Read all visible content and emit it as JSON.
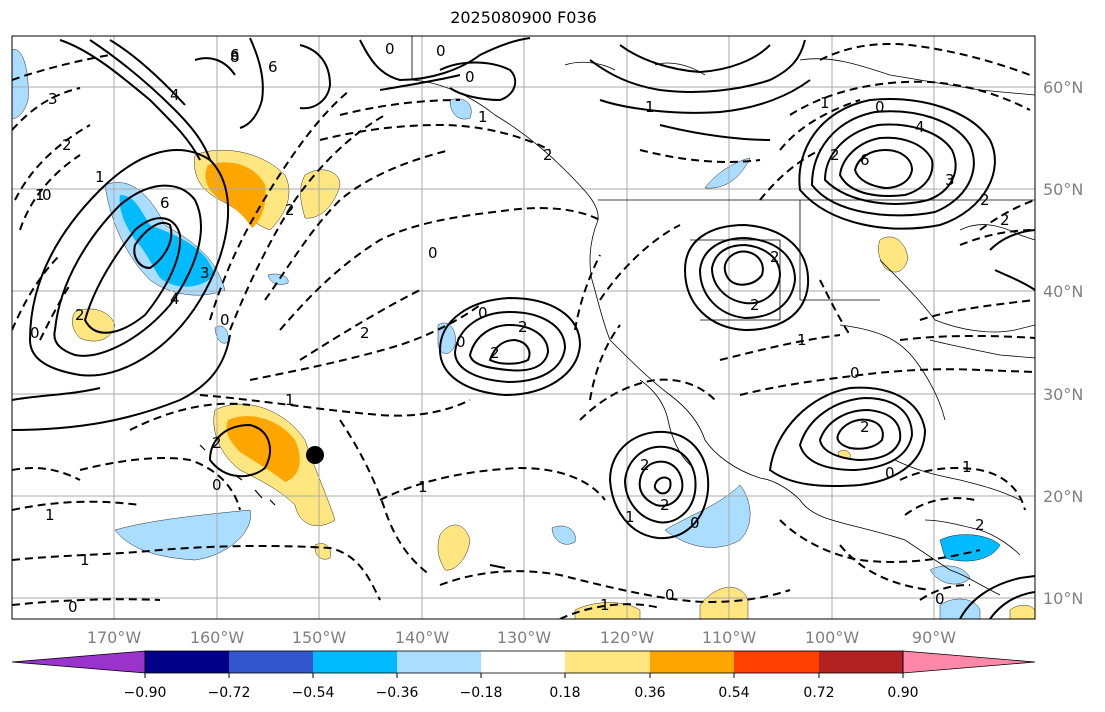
{
  "title": "2025080900 F036",
  "lon_labels": [
    "170°W",
    "160°W",
    "150°W",
    "140°W",
    "130°W",
    "120°W",
    "110°W",
    "100°W",
    "90°W"
  ],
  "lat_labels": [
    "60°N",
    "50°N",
    "40°N",
    "30°N",
    "20°N",
    "10°N"
  ],
  "colorbar": {
    "ticks": [
      "−0.90",
      "−0.72",
      "−0.54",
      "−0.36",
      "−0.18",
      "0.18",
      "0.36",
      "0.54",
      "0.72",
      "0.90"
    ],
    "colors": [
      "#9933cc",
      "#000088",
      "#3355cc",
      "#00bbff",
      "#aaddff",
      "#ffffff",
      "#ffe680",
      "#ffa500",
      "#ff4000",
      "#b22222",
      "#ff88aa"
    ]
  },
  "contour_labels": [
    "0",
    "0",
    "4",
    "6",
    "8",
    "4",
    "3",
    "2",
    "1",
    "2",
    "0",
    "1",
    "6",
    "3",
    "2",
    "0",
    "4",
    "2",
    "0",
    "2",
    "2",
    "2",
    "0",
    "0",
    "2",
    "2",
    "0",
    "1",
    "1",
    "0",
    "2",
    "2",
    "1",
    "2",
    "0",
    "4",
    "6",
    "1",
    "2",
    "3",
    "1",
    "0",
    "2",
    "1",
    "2",
    "0",
    "1",
    "0",
    "1",
    "0",
    "1",
    "0",
    "2",
    "1",
    "0",
    "1",
    "0",
    "2"
  ],
  "marker": "storm-center-dot"
}
